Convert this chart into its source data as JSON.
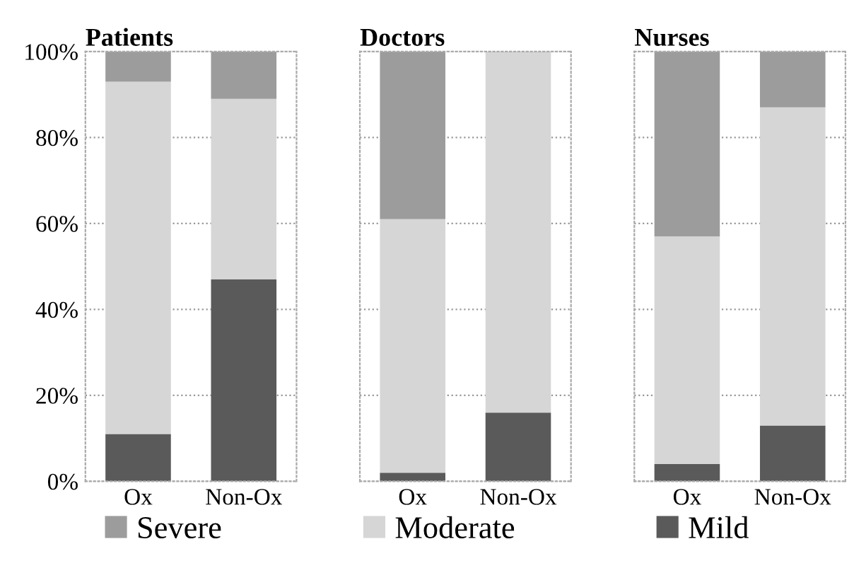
{
  "chart_data": [
    {
      "type": "bar",
      "title": "Patients",
      "stacked": true,
      "categories": [
        "Ox",
        "Non-Ox"
      ],
      "ylim": [
        0,
        100
      ],
      "yticks": [
        {
          "value": 0,
          "label": "0%"
        },
        {
          "value": 20,
          "label": "20%"
        },
        {
          "value": 40,
          "label": "40%"
        },
        {
          "value": 60,
          "label": "60%"
        },
        {
          "value": 80,
          "label": "80%"
        },
        {
          "value": 100,
          "label": "100%"
        }
      ],
      "grid": "y",
      "legend": "bottom",
      "series": [
        {
          "name": "Mild",
          "color": "#5a5a5a",
          "values": [
            11,
            47
          ]
        },
        {
          "name": "Moderate",
          "color": "#d6d6d6",
          "values": [
            82,
            42
          ]
        },
        {
          "name": "Severe",
          "color": "#9c9c9c",
          "values": [
            7,
            11
          ]
        }
      ]
    },
    {
      "type": "bar",
      "title": "Doctors",
      "stacked": true,
      "categories": [
        "Ox",
        "Non-Ox"
      ],
      "ylim": [
        0,
        100
      ],
      "yticks": [
        {
          "value": 0,
          "label": null
        },
        {
          "value": 20,
          "label": null
        },
        {
          "value": 40,
          "label": null
        },
        {
          "value": 60,
          "label": null
        },
        {
          "value": 80,
          "label": null
        },
        {
          "value": 100,
          "label": null
        }
      ],
      "grid": "y",
      "tick_labels": "x",
      "series": [
        {
          "color": "#5a5a5a",
          "values": [
            2,
            16
          ]
        },
        {
          "color": "#d6d6d6",
          "values": [
            59,
            84
          ]
        },
        {
          "color": "#9c9c9c",
          "values": [
            39,
            0
          ]
        }
      ]
    },
    {
      "type": "bar",
      "title": "Nurses",
      "stacked": true,
      "categories": [
        "Ox",
        "Non-Ox"
      ],
      "ylim": [
        0,
        100
      ],
      "yticks": [
        {
          "value": 0,
          "label": null
        },
        {
          "value": 20,
          "label": null
        },
        {
          "value": 40,
          "label": null
        },
        {
          "value": 60,
          "label": null
        },
        {
          "value": 80,
          "label": null
        },
        {
          "value": 100,
          "label": null
        }
      ],
      "grid": "y",
      "tick_labels": "x",
      "series": [
        {
          "color": "#5a5a5a",
          "values": [
            4,
            13
          ]
        },
        {
          "color": "#d6d6d6",
          "values": [
            53,
            74
          ]
        },
        {
          "color": "#9c9c9c",
          "values": [
            43,
            13
          ]
        }
      ]
    }
  ]
}
